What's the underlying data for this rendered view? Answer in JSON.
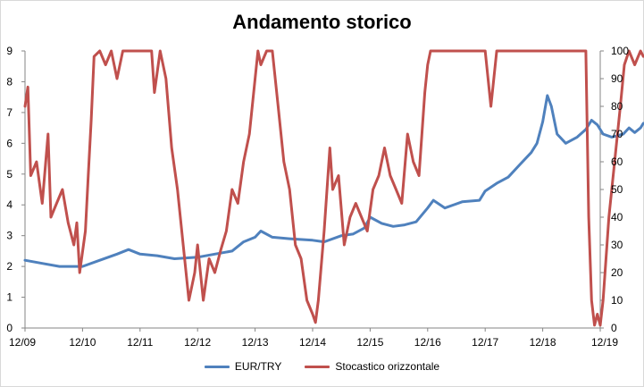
{
  "chart_data": {
    "type": "line",
    "title": "Andamento storico",
    "x_labels": [
      "12/09",
      "12/10",
      "12/11",
      "12/12",
      "12/13",
      "12/14",
      "12/15",
      "12/16",
      "12/17",
      "12/18",
      "12/19"
    ],
    "y_left": {
      "min": 0,
      "max": 9,
      "ticks": [
        0,
        1,
        2,
        3,
        4,
        5,
        6,
        7,
        8,
        9
      ]
    },
    "y_right": {
      "min": 0,
      "max": 100,
      "ticks": [
        0,
        10,
        20,
        30,
        40,
        50,
        60,
        70,
        80,
        90,
        100
      ]
    },
    "legend_position": "bottom",
    "grid": false,
    "series": [
      {
        "name": "EUR/TRY",
        "axis": "left",
        "color": "#4f81bd",
        "points": [
          [
            0,
            2.2
          ],
          [
            0.3,
            2.1
          ],
          [
            0.6,
            2.0
          ],
          [
            1.0,
            2.0
          ],
          [
            1.3,
            2.2
          ],
          [
            1.6,
            2.4
          ],
          [
            1.8,
            2.55
          ],
          [
            2.0,
            2.4
          ],
          [
            2.3,
            2.35
          ],
          [
            2.6,
            2.25
          ],
          [
            3.0,
            2.3
          ],
          [
            3.3,
            2.4
          ],
          [
            3.6,
            2.5
          ],
          [
            3.8,
            2.8
          ],
          [
            4.0,
            2.95
          ],
          [
            4.1,
            3.15
          ],
          [
            4.3,
            2.95
          ],
          [
            4.6,
            2.9
          ],
          [
            5.0,
            2.85
          ],
          [
            5.2,
            2.8
          ],
          [
            5.5,
            3.0
          ],
          [
            5.7,
            3.05
          ],
          [
            5.9,
            3.25
          ],
          [
            6.0,
            3.6
          ],
          [
            6.2,
            3.4
          ],
          [
            6.4,
            3.3
          ],
          [
            6.6,
            3.35
          ],
          [
            6.8,
            3.45
          ],
          [
            7.0,
            3.9
          ],
          [
            7.1,
            4.15
          ],
          [
            7.3,
            3.9
          ],
          [
            7.6,
            4.1
          ],
          [
            7.9,
            4.15
          ],
          [
            8.0,
            4.45
          ],
          [
            8.2,
            4.7
          ],
          [
            8.4,
            4.9
          ],
          [
            8.6,
            5.3
          ],
          [
            8.8,
            5.7
          ],
          [
            8.9,
            6.0
          ],
          [
            9.0,
            6.7
          ],
          [
            9.08,
            7.55
          ],
          [
            9.15,
            7.2
          ],
          [
            9.25,
            6.3
          ],
          [
            9.4,
            6.0
          ],
          [
            9.6,
            6.2
          ],
          [
            9.75,
            6.45
          ],
          [
            9.85,
            6.75
          ],
          [
            9.95,
            6.6
          ],
          [
            10.05,
            6.3
          ],
          [
            10.2,
            6.2
          ],
          [
            10.4,
            6.3
          ],
          [
            10.5,
            6.5
          ],
          [
            10.6,
            6.35
          ],
          [
            10.7,
            6.5
          ],
          [
            10.75,
            6.65
          ]
        ]
      },
      {
        "name": "Stocastico orizzontale",
        "axis": "right",
        "color": "#c0504d",
        "points": [
          [
            0,
            80
          ],
          [
            0.05,
            87
          ],
          [
            0.1,
            55
          ],
          [
            0.2,
            60
          ],
          [
            0.3,
            45
          ],
          [
            0.4,
            70
          ],
          [
            0.45,
            40
          ],
          [
            0.55,
            45
          ],
          [
            0.65,
            50
          ],
          [
            0.75,
            38
          ],
          [
            0.85,
            30
          ],
          [
            0.9,
            38
          ],
          [
            0.95,
            20
          ],
          [
            1.05,
            35
          ],
          [
            1.1,
            55
          ],
          [
            1.15,
            75
          ],
          [
            1.2,
            98
          ],
          [
            1.3,
            100
          ],
          [
            1.4,
            95
          ],
          [
            1.5,
            100
          ],
          [
            1.6,
            90
          ],
          [
            1.7,
            100
          ],
          [
            2.0,
            100
          ],
          [
            2.2,
            100
          ],
          [
            2.25,
            85
          ],
          [
            2.35,
            100
          ],
          [
            2.45,
            90
          ],
          [
            2.55,
            65
          ],
          [
            2.65,
            50
          ],
          [
            2.75,
            30
          ],
          [
            2.85,
            10
          ],
          [
            2.95,
            20
          ],
          [
            3.0,
            30
          ],
          [
            3.1,
            10
          ],
          [
            3.2,
            25
          ],
          [
            3.3,
            20
          ],
          [
            3.4,
            28
          ],
          [
            3.5,
            35
          ],
          [
            3.6,
            50
          ],
          [
            3.7,
            45
          ],
          [
            3.8,
            60
          ],
          [
            3.9,
            70
          ],
          [
            4.0,
            90
          ],
          [
            4.05,
            100
          ],
          [
            4.1,
            95
          ],
          [
            4.2,
            100
          ],
          [
            4.3,
            100
          ],
          [
            4.4,
            80
          ],
          [
            4.5,
            60
          ],
          [
            4.6,
            50
          ],
          [
            4.7,
            30
          ],
          [
            4.8,
            25
          ],
          [
            4.9,
            10
          ],
          [
            5.0,
            5
          ],
          [
            5.05,
            2
          ],
          [
            5.1,
            10
          ],
          [
            5.2,
            35
          ],
          [
            5.3,
            65
          ],
          [
            5.35,
            50
          ],
          [
            5.45,
            55
          ],
          [
            5.55,
            30
          ],
          [
            5.65,
            40
          ],
          [
            5.75,
            45
          ],
          [
            5.85,
            40
          ],
          [
            5.95,
            35
          ],
          [
            6.05,
            50
          ],
          [
            6.15,
            55
          ],
          [
            6.25,
            65
          ],
          [
            6.35,
            55
          ],
          [
            6.45,
            50
          ],
          [
            6.55,
            45
          ],
          [
            6.65,
            70
          ],
          [
            6.75,
            60
          ],
          [
            6.85,
            55
          ],
          [
            6.95,
            85
          ],
          [
            7.0,
            95
          ],
          [
            7.05,
            100
          ],
          [
            7.2,
            100
          ],
          [
            7.6,
            100
          ],
          [
            8.0,
            100
          ],
          [
            8.1,
            80
          ],
          [
            8.2,
            100
          ],
          [
            8.4,
            100
          ],
          [
            9.0,
            100
          ],
          [
            9.5,
            100
          ],
          [
            9.75,
            100
          ],
          [
            9.8,
            40
          ],
          [
            9.85,
            10
          ],
          [
            9.9,
            1
          ],
          [
            9.95,
            5
          ],
          [
            10.0,
            1
          ],
          [
            10.05,
            10
          ],
          [
            10.15,
            40
          ],
          [
            10.25,
            60
          ],
          [
            10.35,
            80
          ],
          [
            10.42,
            95
          ],
          [
            10.5,
            100
          ],
          [
            10.6,
            95
          ],
          [
            10.7,
            100
          ],
          [
            10.75,
            98
          ]
        ]
      }
    ]
  }
}
